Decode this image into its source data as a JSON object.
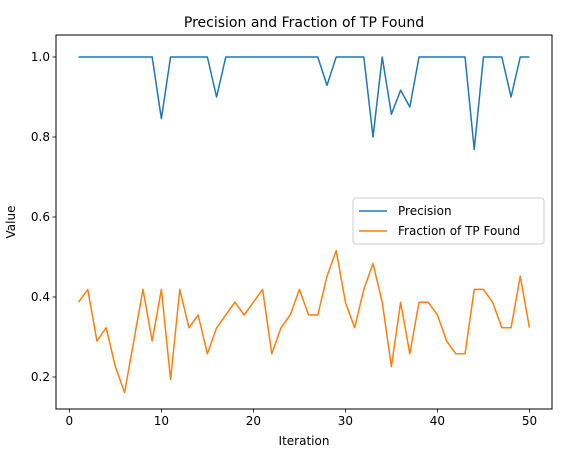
{
  "chart_data": {
    "type": "line",
    "title": "Precision and Fraction of TP Found",
    "xlabel": "Iteration",
    "ylabel": "Value",
    "xlim": [
      -1.45,
      52.45
    ],
    "ylim": [
      0.12,
      1.055
    ],
    "xticks": [
      0,
      10,
      20,
      30,
      40,
      50
    ],
    "yticks": [
      0.2,
      0.4,
      0.6,
      0.8,
      1.0
    ],
    "xtick_labels": [
      "0",
      "10",
      "20",
      "30",
      "40",
      "50"
    ],
    "ytick_labels": [
      "0.2",
      "0.4",
      "0.6",
      "0.8",
      "1.0"
    ],
    "grid": false,
    "legend_position": "center-right",
    "x": [
      1,
      2,
      3,
      4,
      5,
      6,
      7,
      8,
      9,
      10,
      11,
      12,
      13,
      14,
      15,
      16,
      17,
      18,
      19,
      20,
      21,
      22,
      23,
      24,
      25,
      26,
      27,
      28,
      29,
      30,
      31,
      32,
      33,
      34,
      35,
      36,
      37,
      38,
      39,
      40,
      41,
      42,
      43,
      44,
      45,
      46,
      47,
      48,
      49,
      50
    ],
    "series": [
      {
        "name": "Precision",
        "color": "#1f77b4",
        "values": [
          1.0,
          1.0,
          1.0,
          1.0,
          1.0,
          1.0,
          1.0,
          1.0,
          1.0,
          0.846,
          1.0,
          1.0,
          1.0,
          1.0,
          1.0,
          0.9,
          1.0,
          1.0,
          1.0,
          1.0,
          1.0,
          1.0,
          1.0,
          1.0,
          1.0,
          1.0,
          1.0,
          0.929,
          1.0,
          1.0,
          1.0,
          1.0,
          0.8,
          1.0,
          0.857,
          0.917,
          0.875,
          1.0,
          1.0,
          1.0,
          1.0,
          1.0,
          1.0,
          0.769,
          1.0,
          1.0,
          1.0,
          0.9,
          1.0,
          1.0
        ]
      },
      {
        "name": "Fraction of TP Found",
        "color": "#ff7f0e",
        "values": [
          0.387,
          0.419,
          0.29,
          0.323,
          0.226,
          0.161,
          0.29,
          0.419,
          0.29,
          0.419,
          0.194,
          0.419,
          0.323,
          0.355,
          0.258,
          0.323,
          0.355,
          0.387,
          0.355,
          0.387,
          0.419,
          0.258,
          0.323,
          0.355,
          0.419,
          0.355,
          0.355,
          0.452,
          0.516,
          0.387,
          0.323,
          0.419,
          0.484,
          0.387,
          0.226,
          0.387,
          0.258,
          0.387,
          0.387,
          0.355,
          0.29,
          0.258,
          0.258,
          0.419,
          0.419,
          0.387,
          0.323,
          0.323,
          0.452,
          0.323
        ]
      }
    ]
  }
}
